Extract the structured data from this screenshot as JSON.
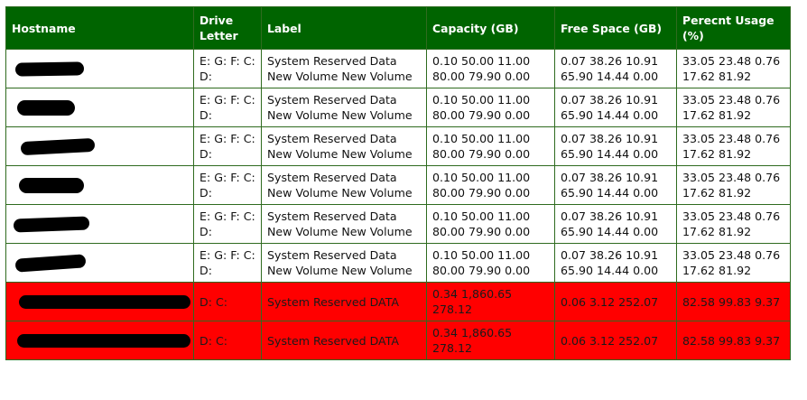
{
  "table": {
    "headers": {
      "hostname": "Hostname",
      "drive_letter": "Drive Letter",
      "label": "Label",
      "capacity": "Capacity (GB)",
      "free_space": "Free Space (GB)",
      "percent_usage": "Perecnt Usage (%)"
    },
    "rows": [
      {
        "status": "ok",
        "hostname_redacted": true,
        "drive_letter": "E: G: F: C: D:",
        "label": "System Reserved Data New Volume New Volume",
        "capacity": "0.10 50.00 11.00 80.00 79.90 0.00",
        "free_space": "0.07 38.26 10.91 65.90 14.44 0.00",
        "percent_usage": "33.05 23.48 0.76 17.62 81.92"
      },
      {
        "status": "ok",
        "hostname_redacted": true,
        "drive_letter": "E: G: F: C: D:",
        "label": "System Reserved Data New Volume New Volume",
        "capacity": "0.10 50.00 11.00 80.00 79.90 0.00",
        "free_space": "0.07 38.26 10.91 65.90 14.44 0.00",
        "percent_usage": "33.05 23.48 0.76 17.62 81.92"
      },
      {
        "status": "ok",
        "hostname_redacted": true,
        "drive_letter": "E: G: F: C: D:",
        "label": "System Reserved Data New Volume New Volume",
        "capacity": "0.10 50.00 11.00 80.00 79.90 0.00",
        "free_space": "0.07 38.26 10.91 65.90 14.44 0.00",
        "percent_usage": "33.05 23.48 0.76 17.62 81.92"
      },
      {
        "status": "ok",
        "hostname_redacted": true,
        "drive_letter": "E: G: F: C: D:",
        "label": "System Reserved Data New Volume New Volume",
        "capacity": "0.10 50.00 11.00 80.00 79.90 0.00",
        "free_space": "0.07 38.26 10.91 65.90 14.44 0.00",
        "percent_usage": "33.05 23.48 0.76 17.62 81.92"
      },
      {
        "status": "ok",
        "hostname_redacted": true,
        "drive_letter": "E: G: F: C: D:",
        "label": "System Reserved Data New Volume New Volume",
        "capacity": "0.10 50.00 11.00 80.00 79.90 0.00",
        "free_space": "0.07 38.26 10.91 65.90 14.44 0.00",
        "percent_usage": "33.05 23.48 0.76 17.62 81.92"
      },
      {
        "status": "ok",
        "hostname_redacted": true,
        "drive_letter": "E: G: F: C: D:",
        "label": "System Reserved Data New Volume New Volume",
        "capacity": "0.10 50.00 11.00 80.00 79.90 0.00",
        "free_space": "0.07 38.26 10.91 65.90 14.44 0.00",
        "percent_usage": "33.05 23.48 0.76 17.62 81.92"
      },
      {
        "status": "alert",
        "hostname_redacted": true,
        "drive_letter": "D: C:",
        "label": "System Reserved DATA",
        "capacity": "0.34 1,860.65 278.12",
        "free_space": "0.06 3.12 252.07",
        "percent_usage": "82.58 99.83 9.37"
      },
      {
        "status": "alert",
        "hostname_redacted": true,
        "drive_letter": "D: C:",
        "label": "System Reserved DATA",
        "capacity": "0.34 1,860.65 278.12",
        "free_space": "0.06 3.12 252.07",
        "percent_usage": "82.58 99.83 9.37"
      }
    ]
  },
  "colors": {
    "header_bg": "#006400",
    "header_text": "#ffffff",
    "grid": "#2f6b1f",
    "alert_row_bg": "#ff0000",
    "ok_row_bg": "#ffffff"
  }
}
